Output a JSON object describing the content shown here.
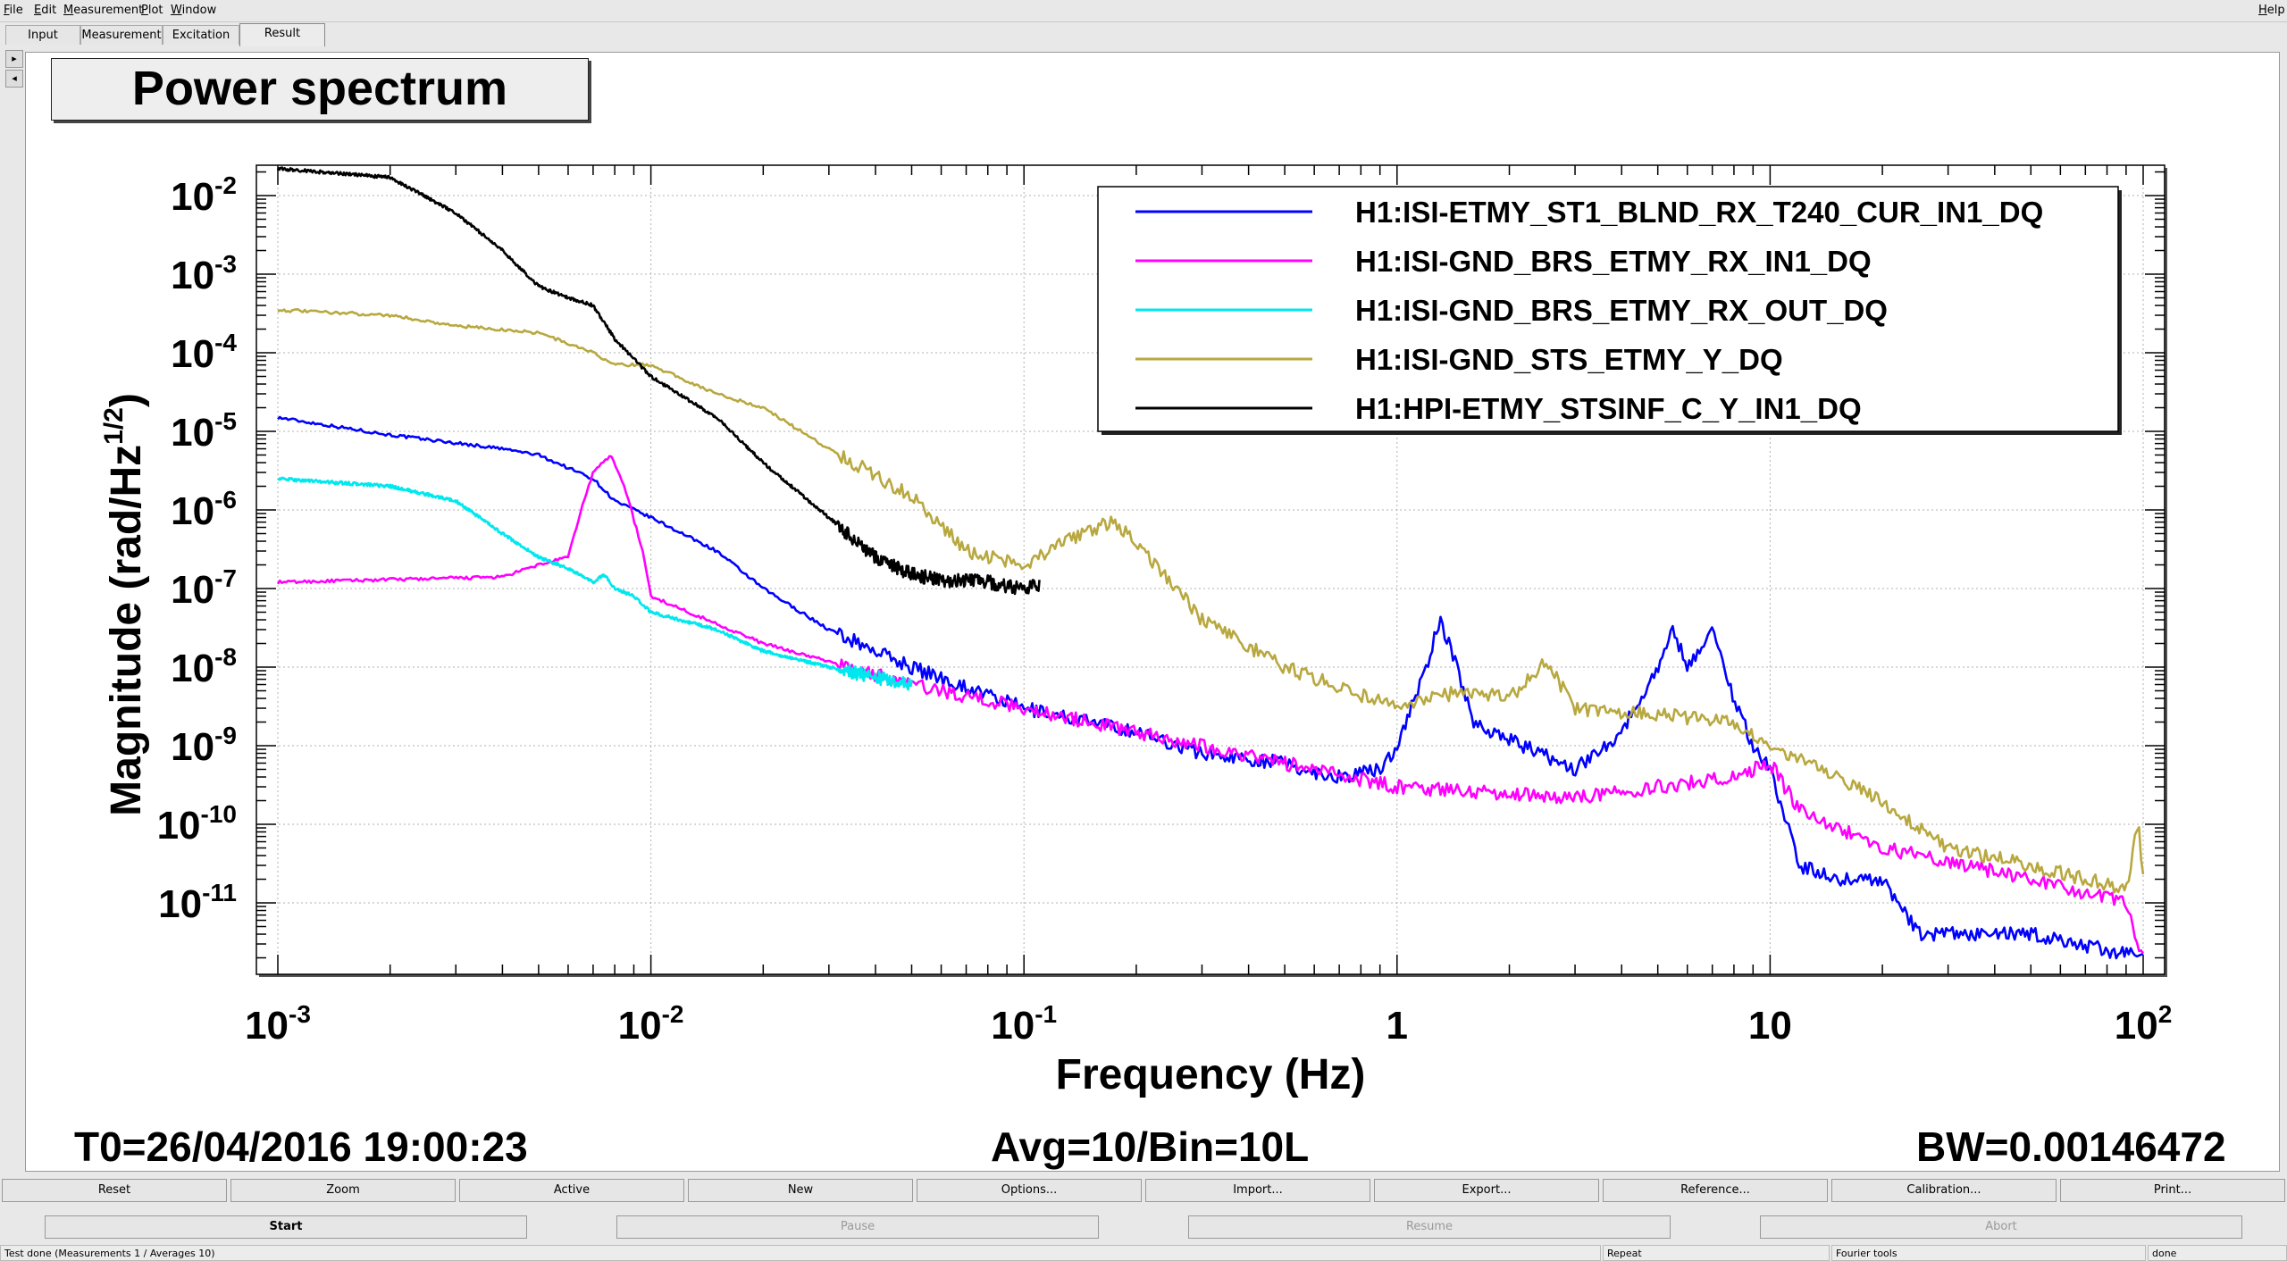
{
  "menu": {
    "left": [
      {
        "pre": "",
        "u": "F",
        "post": "ile"
      },
      {
        "pre": "",
        "u": "E",
        "post": "dit"
      },
      {
        "pre": "",
        "u": "M",
        "post": "easurement"
      },
      {
        "pre": "",
        "u": "P",
        "post": "lot"
      },
      {
        "pre": "",
        "u": "W",
        "post": "indow"
      }
    ],
    "help": {
      "pre": "",
      "u": "H",
      "post": "elp"
    }
  },
  "tabs": [
    "Input",
    "Measurement",
    "Excitation",
    "Result"
  ],
  "active_tab": "Result",
  "side_arrows": [
    "▸",
    "◂"
  ],
  "plot": {
    "title": "Power spectrum",
    "xlabel": "Frequency (Hz)",
    "ylabel_main": "Magnitude (rad/Hz",
    "ylabel_sup": "1/2",
    "ylabel_close": ")",
    "x_ticks": [
      {
        "base": "10",
        "exp": "-3"
      },
      {
        "base": "10",
        "exp": "-2"
      },
      {
        "base": "10",
        "exp": "-1"
      },
      {
        "base": "1",
        "exp": ""
      },
      {
        "base": "10",
        "exp": ""
      },
      {
        "base": "10",
        "exp": "2"
      }
    ],
    "y_ticks": [
      {
        "base": "10",
        "exp": "-2"
      },
      {
        "base": "10",
        "exp": "-3"
      },
      {
        "base": "10",
        "exp": "-4"
      },
      {
        "base": "10",
        "exp": "-5"
      },
      {
        "base": "10",
        "exp": "-6"
      },
      {
        "base": "10",
        "exp": "-7"
      },
      {
        "base": "10",
        "exp": "-8"
      },
      {
        "base": "10",
        "exp": "-9"
      },
      {
        "base": "10",
        "exp": "-10"
      },
      {
        "base": "10",
        "exp": "-11"
      }
    ],
    "t0": "T0=26/04/2016 19:00:23",
    "avg": "Avg=10/Bin=10L",
    "bw": "BW=0.00146472"
  },
  "chart_data": {
    "type": "line",
    "x_scale": "log",
    "y_scale": "log",
    "xlim": [
      0.001,
      100
    ],
    "ylim": [
      1.5e-12,
      0.025
    ],
    "grid": true,
    "legend_position": "top-right",
    "series": [
      {
        "name": "H1:ISI-ETMY_ST1_BLND_RX_T240_CUR_IN1_DQ",
        "color": "#0000ff",
        "x": [
          0.001,
          0.002,
          0.004,
          0.005,
          0.007,
          0.008,
          0.01,
          0.015,
          0.02,
          0.03,
          0.05,
          0.1,
          0.2,
          0.3,
          0.5,
          0.55,
          0.7,
          0.9,
          1.0,
          1.2,
          1.3,
          1.45,
          1.6,
          2.0,
          3.0,
          4.0,
          5.0,
          5.5,
          6.0,
          7.0,
          8.0,
          9.0,
          10.0,
          12.0,
          15.0,
          20.0,
          25.0,
          50.0,
          100.0
        ],
        "y": [
          1.5e-05,
          9e-06,
          6e-06,
          5e-06,
          2.5e-06,
          1.3e-06,
          8e-07,
          3e-07,
          1e-07,
          3e-08,
          1e-08,
          3e-09,
          1.5e-09,
          8e-10,
          6e-10,
          5e-10,
          4e-10,
          5e-10,
          1e-09,
          1e-08,
          4e-08,
          1e-08,
          2e-09,
          1.2e-09,
          5e-10,
          1.5e-09,
          1e-08,
          3e-08,
          1e-08,
          3e-08,
          4e-09,
          1e-09,
          5e-10,
          3e-11,
          2e-11,
          2e-11,
          4e-12,
          4e-12,
          2e-12
        ]
      },
      {
        "name": "H1:ISI-GND_BRS_ETMY_RX_IN1_DQ",
        "color": "#ff00ff",
        "x": [
          0.001,
          0.002,
          0.004,
          0.005,
          0.006,
          0.0065,
          0.007,
          0.0078,
          0.0085,
          0.0095,
          0.01,
          0.02,
          0.05,
          0.1,
          0.3,
          1.0,
          3.0,
          8.0,
          10.0,
          12.0,
          20.0,
          50.0,
          90.0,
          100.0
        ],
        "y": [
          1.2e-07,
          1.3e-07,
          1.4e-07,
          2e-07,
          2.5e-07,
          1e-06,
          3e-06,
          5e-06,
          2e-06,
          3e-07,
          8e-08,
          2e-08,
          6e-09,
          3e-09,
          1e-09,
          3e-10,
          2.2e-10,
          4e-10,
          6e-10,
          1.5e-10,
          5e-11,
          2e-11,
          1e-11,
          2e-12
        ]
      },
      {
        "name": "H1:ISI-GND_BRS_ETMY_RX_OUT_DQ",
        "color": "#00e8ee",
        "x": [
          0.001,
          0.002,
          0.003,
          0.004,
          0.005,
          0.006,
          0.007,
          0.0075,
          0.008,
          0.009,
          0.01,
          0.015,
          0.02,
          0.03,
          0.05
        ],
        "y": [
          2.5e-06,
          2e-06,
          1.3e-06,
          5e-07,
          2.5e-07,
          1.8e-07,
          1.2e-07,
          1.5e-07,
          1e-07,
          8e-08,
          5e-08,
          3e-08,
          1.6e-08,
          1e-08,
          6e-09
        ]
      },
      {
        "name": "H1:ISI-GND_STS_ETMY_Y_DQ",
        "color": "#b8a840",
        "x": [
          0.001,
          0.002,
          0.003,
          0.005,
          0.007,
          0.008,
          0.01,
          0.015,
          0.02,
          0.03,
          0.05,
          0.07,
          0.1,
          0.13,
          0.17,
          0.2,
          0.3,
          0.5,
          1.0,
          1.5,
          2.0,
          2.5,
          3.0,
          5.0,
          8.0,
          10.0,
          15.0,
          20.0,
          30.0,
          50.0,
          90.0,
          97.0,
          100.0
        ],
        "y": [
          0.00035,
          0.0003,
          0.00022,
          0.00018,
          0.0001,
          7e-05,
          7e-05,
          3e-05,
          2e-05,
          6e-06,
          1.5e-06,
          3e-07,
          2e-07,
          4e-07,
          7e-07,
          4e-07,
          4e-08,
          1e-08,
          3e-09,
          5e-09,
          4e-09,
          1.2e-08,
          3e-09,
          2.5e-09,
          2e-09,
          1e-09,
          4e-10,
          2e-10,
          5e-11,
          3e-11,
          1.5e-11,
          1e-10,
          2e-11
        ]
      },
      {
        "name": "H1:HPI-ETMY_STSINF_C_Y_IN1_DQ",
        "color": "#000000",
        "x": [
          0.001,
          0.002,
          0.003,
          0.004,
          0.005,
          0.006,
          0.007,
          0.008,
          0.01,
          0.015,
          0.02,
          0.03,
          0.04,
          0.05,
          0.06,
          0.08,
          0.1,
          0.11
        ],
        "y": [
          0.022,
          0.017,
          0.006,
          0.002,
          0.0007,
          0.0005,
          0.0004,
          0.00015,
          5e-05,
          1.5e-05,
          4e-06,
          8e-07,
          2.5e-07,
          1.5e-07,
          1.3e-07,
          1.2e-07,
          1e-07,
          1.1e-07
        ]
      }
    ]
  },
  "buttons_row1": [
    "Reset",
    "Zoom",
    "Active",
    "New",
    "Options...",
    "Import...",
    "Export...",
    "Reference...",
    "Calibration...",
    "Print..."
  ],
  "buttons_row2": [
    {
      "label": "Start",
      "enabled": true
    },
    {
      "label": "Pause",
      "enabled": false
    },
    {
      "label": "Resume",
      "enabled": false
    },
    {
      "label": "Abort",
      "enabled": false
    }
  ],
  "status": {
    "main": "Test done (Measurements 1 / Averages 10)",
    "repeat": "Repeat",
    "fourier": "Fourier tools",
    "state": "done"
  }
}
